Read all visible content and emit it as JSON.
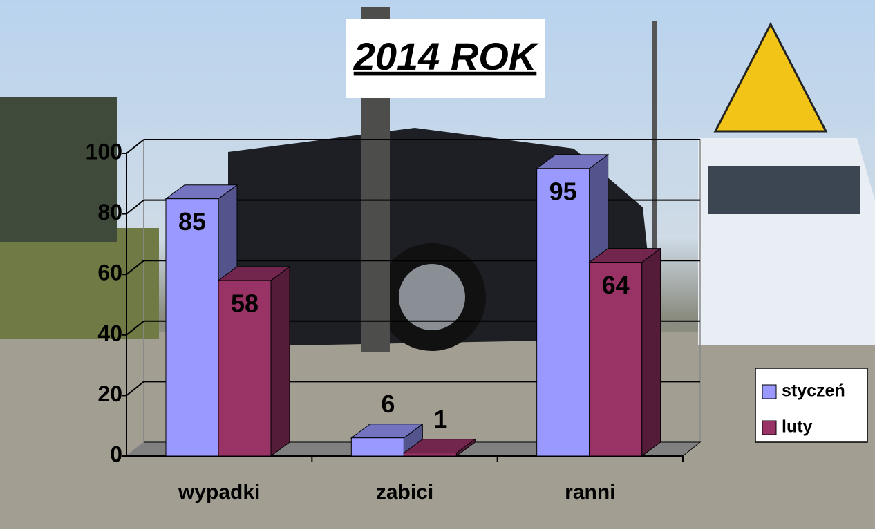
{
  "chart_data": {
    "type": "bar3d",
    "title": "2014 ROK",
    "categories": [
      "wypadki",
      "zabici",
      "ranni"
    ],
    "series": [
      {
        "name": "styczeń",
        "color": "#9999ff",
        "values": [
          85,
          6,
          95
        ]
      },
      {
        "name": "luty",
        "color": "#993366",
        "values": [
          58,
          1,
          64
        ]
      }
    ],
    "ylim": [
      0,
      100
    ],
    "yticks": [
      0,
      20,
      40,
      60,
      80,
      100
    ],
    "grid": true,
    "legend": "right"
  }
}
